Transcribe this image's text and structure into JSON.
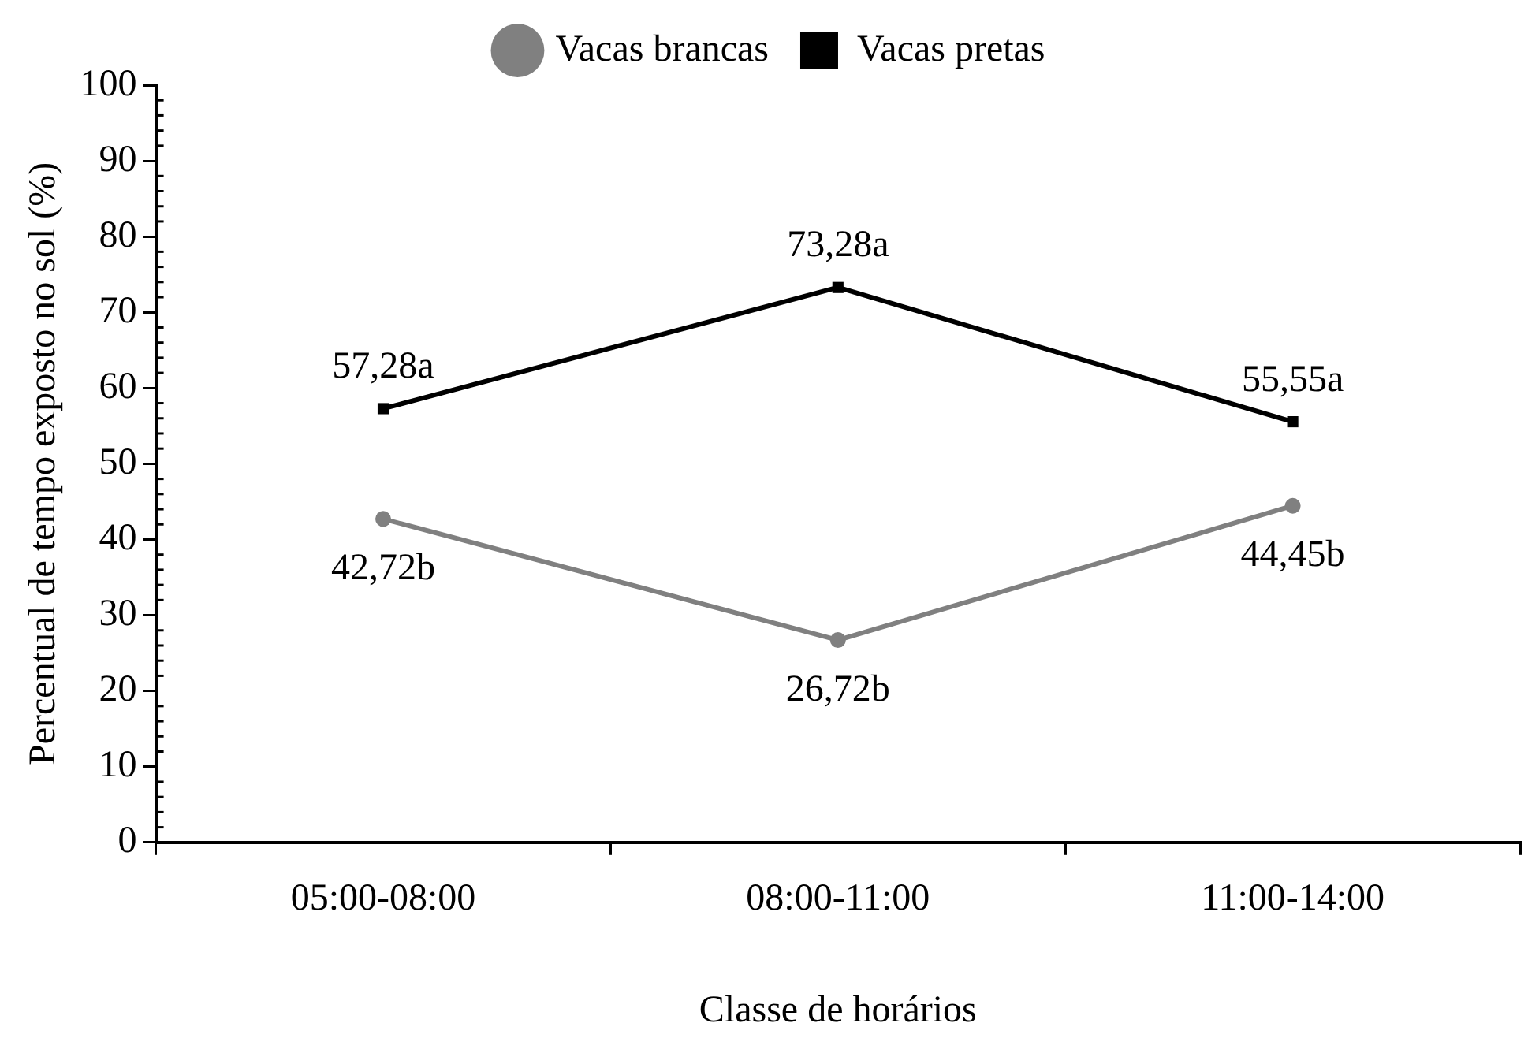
{
  "chart_data": {
    "type": "line",
    "xlabel": "Classe de horários",
    "ylabel": "Percentual de tempo exposto no sol (%)",
    "categories": [
      "05:00-08:00",
      "08:00-11:00",
      "11:00-14:00"
    ],
    "series": [
      {
        "name": "Vacas brancas",
        "color": "#808080",
        "marker": "circle",
        "values": [
          42.72,
          26.72,
          44.45
        ],
        "value_labels": [
          "42,72b",
          "26,72b",
          "44,45b"
        ]
      },
      {
        "name": "Vacas pretas",
        "color": "#000000",
        "marker": "square",
        "values": [
          57.28,
          73.28,
          55.55
        ],
        "value_labels": [
          "57,28a",
          "73,28a",
          "55,55a"
        ]
      }
    ],
    "ylim": [
      0,
      100
    ],
    "yticks": [
      0,
      {
        "value": 2,
        "label": null
      },
      {
        "value": 4,
        "label": null
      },
      {
        "value": 6,
        "label": null
      },
      {
        "value": 8,
        "label": null
      },
      10,
      {
        "value": 12,
        "label": null
      },
      {
        "value": 14,
        "label": null
      },
      {
        "value": 16,
        "label": null
      },
      {
        "value": 18,
        "label": null
      },
      20,
      {
        "value": 22,
        "label": null
      },
      {
        "value": 24,
        "label": null
      },
      {
        "value": 26,
        "label": null
      },
      {
        "value": 28,
        "label": null
      },
      30,
      {
        "value": 32,
        "label": null
      },
      {
        "value": 34,
        "label": null
      },
      {
        "value": 36,
        "label": null
      },
      {
        "value": 38,
        "label": null
      },
      40,
      {
        "value": 42,
        "label": null
      },
      {
        "value": 44,
        "label": null
      },
      {
        "value": 46,
        "label": null
      },
      {
        "value": 48,
        "label": null
      },
      50,
      {
        "value": 52,
        "label": null
      },
      {
        "value": 54,
        "label": null
      },
      {
        "value": 56,
        "label": null
      },
      {
        "value": 58,
        "label": null
      },
      60,
      {
        "value": 62,
        "label": null
      },
      {
        "value": 64,
        "label": null
      },
      {
        "value": 66,
        "label": null
      },
      {
        "value": 68,
        "label": null
      },
      70,
      {
        "value": 72,
        "label": null
      },
      {
        "value": 74,
        "label": null
      },
      {
        "value": 76,
        "label": null
      },
      {
        "value": 78,
        "label": null
      },
      80,
      {
        "value": 82,
        "label": null
      },
      {
        "value": 84,
        "label": null
      },
      {
        "value": 86,
        "label": null
      },
      {
        "value": 88,
        "label": null
      },
      90,
      {
        "value": 92,
        "label": null
      },
      {
        "value": 94,
        "label": null
      },
      {
        "value": 96,
        "label": null
      },
      {
        "value": 98,
        "label": null
      },
      100
    ],
    "grid": false,
    "legend": "top",
    "line_style": "solid"
  }
}
